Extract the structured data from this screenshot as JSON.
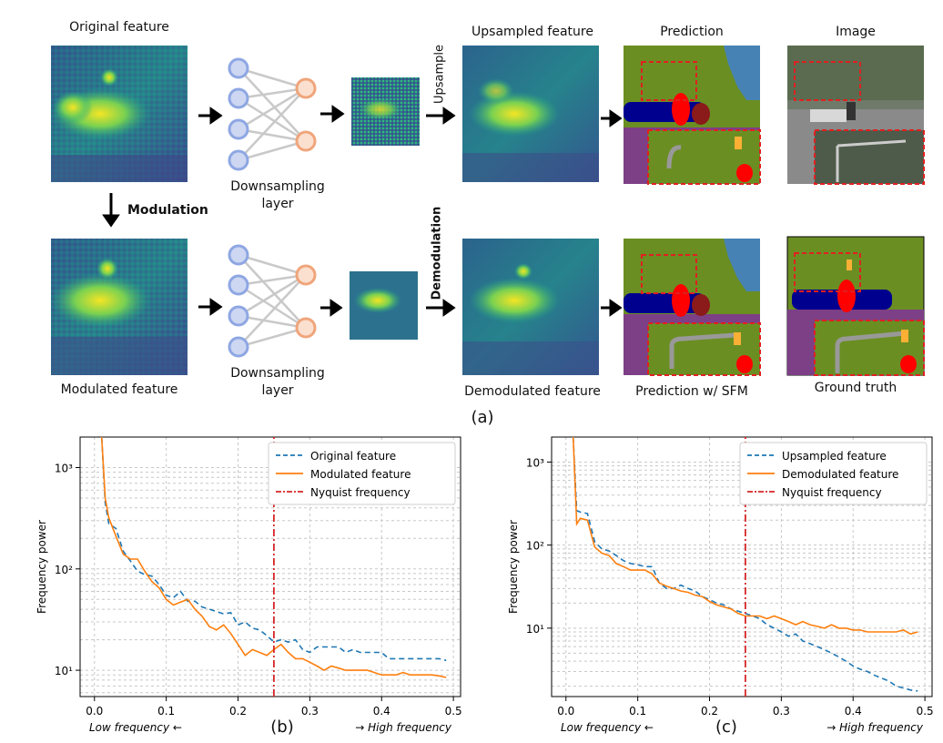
{
  "figure": {
    "top": {
      "labels": {
        "original_feature": "Original feature",
        "modulation": "Modulation",
        "modulated_feature": "Modulated feature",
        "downsampling_layer_1a": "Downsampling",
        "downsampling_layer_1b": "layer",
        "downsampling_layer_2a": "Downsampling",
        "downsampling_layer_2b": "layer",
        "upsample": "Upsample",
        "demodulation": "Demodulation",
        "upsampled_feature": "Upsampled feature",
        "demodulated_feature": "Demodulated feature",
        "prediction": "Prediction",
        "prediction_sfm": "Prediction w/ SFM",
        "image": "Image",
        "ground_truth": "Ground truth",
        "panel_a": "(a)"
      },
      "colors": {
        "node_blue_fill": "#cdd7f2",
        "node_blue_stroke": "#8ea7e3",
        "node_orange_fill": "#fbe0cf",
        "node_orange_stroke": "#f0a57b",
        "edge_gray": "#c9c9c9",
        "dash_red": "#e02020",
        "seg_road": "#7d3f86",
        "seg_vegetation": "#6b8e23",
        "seg_sky": "#4682b4",
        "seg_car": "#00008e",
        "seg_person": "#ff0000",
        "seg_pole": "#999999",
        "seg_sign": "#fbb035"
      }
    },
    "bottom_panel_labels": {
      "b": "(b)",
      "c": "(c)"
    }
  },
  "chart_data": [
    {
      "type": "line",
      "panel": "(b)",
      "xlabel": "",
      "ylabel": "Frequency power",
      "xlabel_left": "Low frequency ←",
      "xlabel_right": "→ High frequency",
      "xlim": [
        -0.02,
        0.51
      ],
      "ylim": [
        5.5,
        2000
      ],
      "y_scale": "log",
      "x_ticks": [
        0.0,
        0.1,
        0.2,
        0.3,
        0.4,
        0.5
      ],
      "x_tick_labels": [
        "0.0",
        "0.1",
        "0.2",
        "0.3",
        "0.4",
        "0.5"
      ],
      "y_ticks": [
        10,
        100,
        1000
      ],
      "y_tick_labels": [
        "10¹",
        "10²",
        "10³"
      ],
      "grid": true,
      "legend_position": "top-right",
      "series": [
        {
          "name": "Original feature",
          "style": "dashed",
          "color": "#1f77b4",
          "x": [
            0.01,
            0.015,
            0.02,
            0.03,
            0.04,
            0.05,
            0.06,
            0.07,
            0.08,
            0.09,
            0.1,
            0.11,
            0.12,
            0.13,
            0.14,
            0.15,
            0.16,
            0.17,
            0.18,
            0.19,
            0.2,
            0.21,
            0.22,
            0.23,
            0.24,
            0.25,
            0.26,
            0.27,
            0.28,
            0.29,
            0.3,
            0.31,
            0.32,
            0.33,
            0.34,
            0.35,
            0.36,
            0.37,
            0.38,
            0.39,
            0.4,
            0.41,
            0.42,
            0.43,
            0.44,
            0.45,
            0.46,
            0.47,
            0.48,
            0.49
          ],
          "y": [
            2000,
            450,
            280,
            250,
            150,
            120,
            95,
            88,
            85,
            70,
            55,
            52,
            60,
            48,
            48,
            42,
            40,
            38,
            36,
            37,
            28,
            30,
            26,
            25,
            22,
            19,
            20,
            19,
            20,
            16,
            15,
            17,
            17,
            17,
            17,
            15,
            16,
            15,
            15,
            15,
            15,
            13,
            13,
            13,
            13,
            13,
            13,
            13,
            13,
            12.5
          ]
        },
        {
          "name": "Modulated feature",
          "style": "solid",
          "color": "#ff7f0e",
          "x": [
            0.01,
            0.015,
            0.02,
            0.03,
            0.04,
            0.05,
            0.06,
            0.07,
            0.08,
            0.09,
            0.1,
            0.11,
            0.12,
            0.13,
            0.14,
            0.15,
            0.16,
            0.17,
            0.18,
            0.19,
            0.2,
            0.21,
            0.22,
            0.23,
            0.24,
            0.25,
            0.26,
            0.27,
            0.28,
            0.29,
            0.3,
            0.31,
            0.32,
            0.33,
            0.34,
            0.35,
            0.36,
            0.37,
            0.38,
            0.39,
            0.4,
            0.41,
            0.42,
            0.43,
            0.44,
            0.45,
            0.46,
            0.47,
            0.48,
            0.49
          ],
          "y": [
            2000,
            500,
            320,
            210,
            140,
            125,
            125,
            95,
            75,
            65,
            50,
            44,
            47,
            50,
            40,
            34,
            27,
            25,
            28,
            23,
            18,
            14,
            16,
            15,
            14,
            16,
            18,
            15,
            13,
            13,
            12,
            11,
            10,
            11,
            10.5,
            10,
            10,
            10,
            10,
            9.5,
            9,
            9,
            9,
            9.5,
            9,
            9,
            9,
            9,
            8.8,
            8.5
          ]
        },
        {
          "name": "Nyquist frequency",
          "style": "dashdot",
          "color": "#d62728",
          "x": [
            0.25,
            0.25
          ],
          "y": [
            5.5,
            2000
          ]
        }
      ]
    },
    {
      "type": "line",
      "panel": "(c)",
      "xlabel": "",
      "ylabel": "Frequency power",
      "xlabel_left": "Low frequency ←",
      "xlabel_right": "→ High frequency",
      "xlim": [
        -0.02,
        0.51
      ],
      "ylim": [
        1.5,
        2000
      ],
      "y_scale": "log",
      "x_ticks": [
        0.0,
        0.1,
        0.2,
        0.3,
        0.4,
        0.5
      ],
      "x_tick_labels": [
        "0.0",
        "0.1",
        "0.2",
        "0.3",
        "0.4",
        "0.5"
      ],
      "y_ticks": [
        10,
        100,
        1000
      ],
      "y_tick_labels": [
        "10¹",
        "10²",
        "10³"
      ],
      "grid": true,
      "legend_position": "top-right",
      "series": [
        {
          "name": "Upsampled feature",
          "style": "dashed",
          "color": "#1f77b4",
          "x": [
            0.01,
            0.015,
            0.02,
            0.03,
            0.04,
            0.05,
            0.06,
            0.07,
            0.08,
            0.09,
            0.1,
            0.11,
            0.12,
            0.13,
            0.14,
            0.15,
            0.16,
            0.17,
            0.18,
            0.19,
            0.2,
            0.21,
            0.22,
            0.23,
            0.24,
            0.25,
            0.26,
            0.27,
            0.28,
            0.29,
            0.3,
            0.31,
            0.32,
            0.33,
            0.34,
            0.35,
            0.36,
            0.37,
            0.38,
            0.39,
            0.4,
            0.41,
            0.42,
            0.43,
            0.44,
            0.45,
            0.46,
            0.47,
            0.48,
            0.49
          ],
          "y": [
            2000,
            260,
            250,
            240,
            110,
            90,
            85,
            75,
            65,
            60,
            58,
            55,
            55,
            35,
            30,
            30,
            33,
            30,
            28,
            24,
            22,
            20,
            19,
            17,
            16,
            15,
            14,
            13,
            11,
            10,
            9,
            8,
            8.5,
            7,
            6.5,
            6,
            5.5,
            5,
            4.5,
            4,
            3.5,
            3.2,
            3,
            2.7,
            2.5,
            2.3,
            2.0,
            1.9,
            1.8,
            1.75
          ]
        },
        {
          "name": "Demodulated feature",
          "style": "solid",
          "color": "#ff7f0e",
          "x": [
            0.01,
            0.015,
            0.02,
            0.03,
            0.04,
            0.05,
            0.06,
            0.07,
            0.08,
            0.09,
            0.1,
            0.11,
            0.12,
            0.13,
            0.14,
            0.15,
            0.16,
            0.17,
            0.18,
            0.19,
            0.2,
            0.21,
            0.22,
            0.23,
            0.24,
            0.25,
            0.26,
            0.27,
            0.28,
            0.29,
            0.3,
            0.31,
            0.32,
            0.33,
            0.34,
            0.35,
            0.36,
            0.37,
            0.38,
            0.39,
            0.4,
            0.41,
            0.42,
            0.43,
            0.44,
            0.45,
            0.46,
            0.47,
            0.48,
            0.49
          ],
          "y": [
            2000,
            180,
            210,
            200,
            95,
            80,
            75,
            60,
            55,
            50,
            50,
            50,
            45,
            35,
            32,
            30,
            28,
            27,
            25,
            24,
            21,
            19,
            18,
            17,
            15,
            14,
            14,
            14,
            13,
            14,
            13,
            12,
            11,
            12,
            11,
            10.5,
            10,
            11,
            10,
            10,
            9.5,
            9.5,
            9,
            9,
            9,
            9,
            9,
            9.5,
            8.5,
            9
          ]
        },
        {
          "name": "Nyquist frequency",
          "style": "dashdot",
          "color": "#d62728",
          "x": [
            0.25,
            0.25
          ],
          "y": [
            1.5,
            2000
          ]
        }
      ]
    }
  ]
}
